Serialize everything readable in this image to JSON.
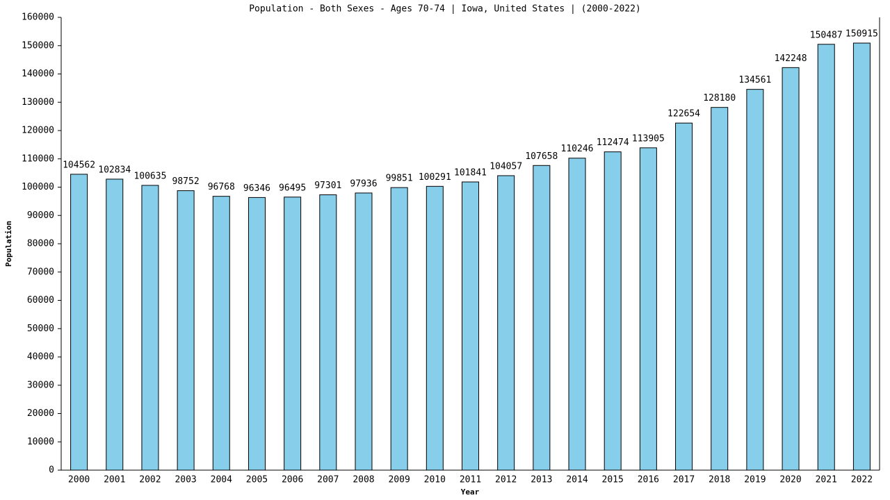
{
  "chart_data": {
    "type": "bar",
    "title": "Population - Both Sexes - Ages 70-74 | Iowa, United States |  (2000-2022)",
    "x_label": "Year",
    "y_label": "Population",
    "categories": [
      "2000",
      "2001",
      "2002",
      "2003",
      "2004",
      "2005",
      "2006",
      "2007",
      "2008",
      "2009",
      "2010",
      "2011",
      "2012",
      "2013",
      "2014",
      "2015",
      "2016",
      "2017",
      "2018",
      "2019",
      "2020",
      "2021",
      "2022"
    ],
    "values": [
      104562,
      102834,
      100635,
      98752,
      96768,
      96346,
      96495,
      97301,
      97936,
      99851,
      100291,
      101841,
      104057,
      107658,
      110246,
      112474,
      113905,
      122654,
      128180,
      134561,
      142248,
      150487,
      150915
    ],
    "color": "#87ceeb",
    "ylim": [
      0,
      160000
    ],
    "yticks": [
      0,
      10000,
      20000,
      30000,
      40000,
      50000,
      60000,
      70000,
      80000,
      90000,
      100000,
      110000,
      120000,
      130000,
      140000,
      150000,
      160000
    ],
    "grid": false
  }
}
